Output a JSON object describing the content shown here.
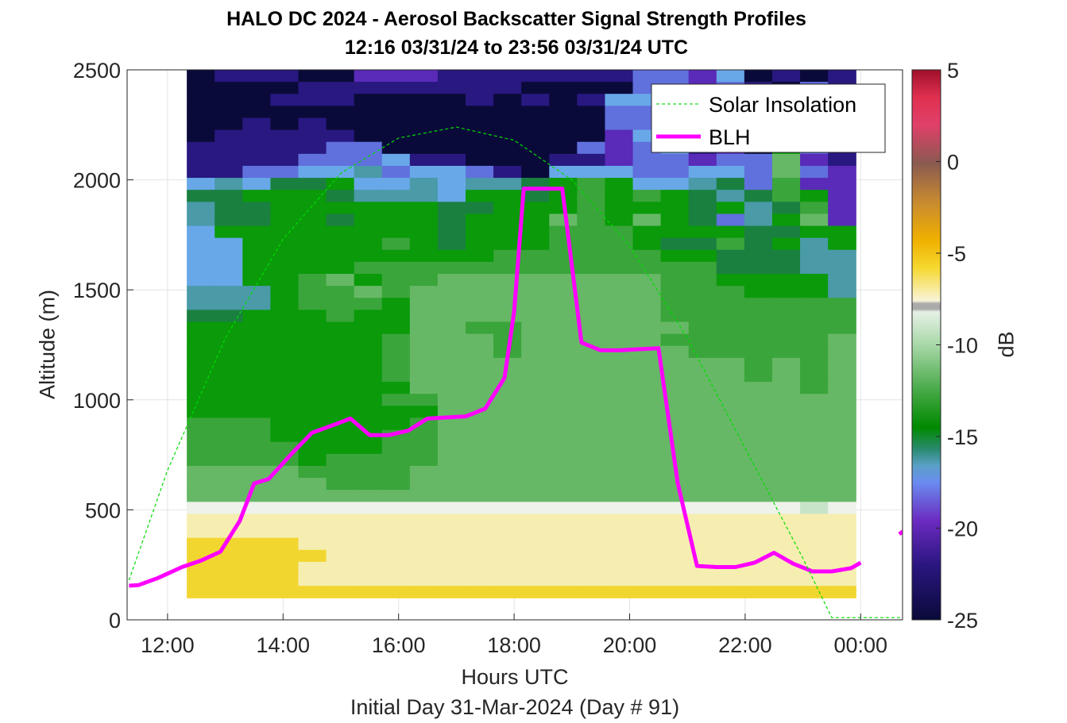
{
  "chart_data": {
    "type": "heatmap",
    "title": "HALO DC 2024 - Aerosol Backscatter Signal Strength Profiles",
    "subtitle": "12:16 03/31/24 to 23:56 03/31/24  UTC",
    "xlabel": "Hours UTC",
    "ylabel": "Altitude (m)",
    "note": "Initial Day 31-Mar-2024 (Day # 91)",
    "x_ticks": [
      "12:00",
      "14:00",
      "16:00",
      "18:00",
      "20:00",
      "22:00",
      "00:00"
    ],
    "y_ticks": [
      "0",
      "500",
      "1000",
      "1500",
      "2000",
      "2500"
    ],
    "ylim": [
      0,
      2500
    ],
    "colorbar": {
      "label": "dB",
      "ticks": [
        "5",
        "0",
        "-5",
        "-10",
        "-15",
        "-20",
        "-25"
      ],
      "range": [
        -25,
        5
      ]
    },
    "legend": {
      "placement": "top-right",
      "entries": [
        "Solar Insolation",
        "BLH"
      ]
    },
    "series": [
      {
        "name": "BLH",
        "color": "#ff00ff",
        "points": [
          [
            "11:20",
            155
          ],
          [
            "11:30",
            158
          ],
          [
            "11:50",
            190
          ],
          [
            "12:15",
            240
          ],
          [
            "12:35",
            270
          ],
          [
            "12:55",
            310
          ],
          [
            "13:15",
            450
          ],
          [
            "13:30",
            620
          ],
          [
            "13:45",
            640
          ],
          [
            "14:10",
            760
          ],
          [
            "14:30",
            850
          ],
          [
            "14:55",
            890
          ],
          [
            "15:10",
            915
          ],
          [
            "15:30",
            840
          ],
          [
            "15:50",
            840
          ],
          [
            "16:10",
            860
          ],
          [
            "16:30",
            915
          ],
          [
            "16:50",
            920
          ],
          [
            "17:10",
            925
          ],
          [
            "17:30",
            960
          ],
          [
            "17:50",
            1100
          ],
          [
            "18:00",
            1400
          ],
          [
            "18:10",
            1960
          ],
          [
            "18:30",
            1960
          ],
          [
            "18:50",
            1960
          ],
          [
            "19:10",
            1260
          ],
          [
            "19:30",
            1225
          ],
          [
            "19:50",
            1225
          ],
          [
            "20:10",
            1230
          ],
          [
            "20:30",
            1235
          ],
          [
            "20:50",
            620
          ],
          [
            "21:10",
            245
          ],
          [
            "21:30",
            240
          ],
          [
            "21:50",
            240
          ],
          [
            "22:10",
            260
          ],
          [
            "22:30",
            305
          ],
          [
            "22:50",
            255
          ],
          [
            "23:10",
            220
          ],
          [
            "23:30",
            220
          ],
          [
            "23:50",
            235
          ],
          [
            "00:00",
            260
          ]
        ],
        "trailing_segment": [
          [
            "00:40",
            390
          ],
          [
            "00:50",
            420
          ]
        ]
      },
      {
        "name": "Solar Insolation",
        "color": "#00dd00",
        "style": "dashed",
        "points": [
          [
            "11:20",
            180
          ],
          [
            "12:00",
            680
          ],
          [
            "13:00",
            1280
          ],
          [
            "14:00",
            1730
          ],
          [
            "15:00",
            2030
          ],
          [
            "16:00",
            2190
          ],
          [
            "17:00",
            2240
          ],
          [
            "18:00",
            2180
          ],
          [
            "19:00",
            2000
          ],
          [
            "20:00",
            1700
          ],
          [
            "21:00",
            1280
          ],
          [
            "22:00",
            780
          ],
          [
            "23:00",
            280
          ],
          [
            "23:30",
            10
          ],
          [
            "00:50",
            10
          ]
        ]
      }
    ],
    "heatmap": {
      "x_start": "12:20",
      "x_end": "23:55",
      "y_start": 100,
      "y_end": 2500,
      "level_colors": [
        "#0a0a3a",
        "#281880",
        "#5a2ab8",
        "#6070dd",
        "#68a8e8",
        "#4a9aa8",
        "#1a8040",
        "#0a9a0a",
        "#3aa53a",
        "#66b866",
        "#9ccf9c",
        "#c8e4c8",
        "#eef2ea",
        "#b4b4b4",
        "#f6eeb0",
        "#f2d630",
        "#f2b000",
        "#d99425",
        "#a87a40",
        "#aa5a3a",
        "#c8285a",
        "#e8607a",
        "#c01028",
        "#a01020"
      ],
      "rows_top_to_bottom": [
        "011100222111111133240101",
        "000011111111000033231031",
        "000111000010101443330311",
        "000000000000000335210131",
        "001010000000000335221021",
        "011111000000000244320321",
        "111113300000003234120731",
        "111133341100011233233921",
        "113344534431044433443932",
        "454667445455678744563822",
        "667776555477678787656872",
        "566777777667778777675682",
        "566776777677798797635792",
        "477777777677788877776677",
        "447777787677788876686757",
        "447777777778888887766655",
        "447777888888888888866655",
        "447789788999999998877775",
        "555788989999999998887775",
        "555788879999999998888888",
        "667778779999999998888888",
        "777777779988999999888888",
        "777777789998999998888889",
        "777777789998999999888889",
        "777777789999999999998989",
        "777777789999999999998989",
        "777777779999999999999989",
        "777777788999999999999999",
        "777777777999999999999999",
        "888777778999999999999999",
        "888777788999999999999999",
        "888877788999999999999999",
        "888878888999999999999999",
        "999988889999999999999999",
        "999998889999999999999999",
        "999999999999999999999999",
        "ccccccccccccccccccccccbc",
        "eeeeeeeeeeeeeeeeeeeeeeee",
        "eeeeeeeeeeeeeeeeeeeeeeee",
        "ffffeeeeeeeeeeeeeeeeeeee",
        "fffffeeeeeeeeeeeeeeeeeee",
        "ffffeeeeeeeeeeeeeeeeeeee",
        "ffffeeeeeeeeeeeeeeeeeeee",
        "ffffffffffffffffffffffff"
      ]
    }
  }
}
